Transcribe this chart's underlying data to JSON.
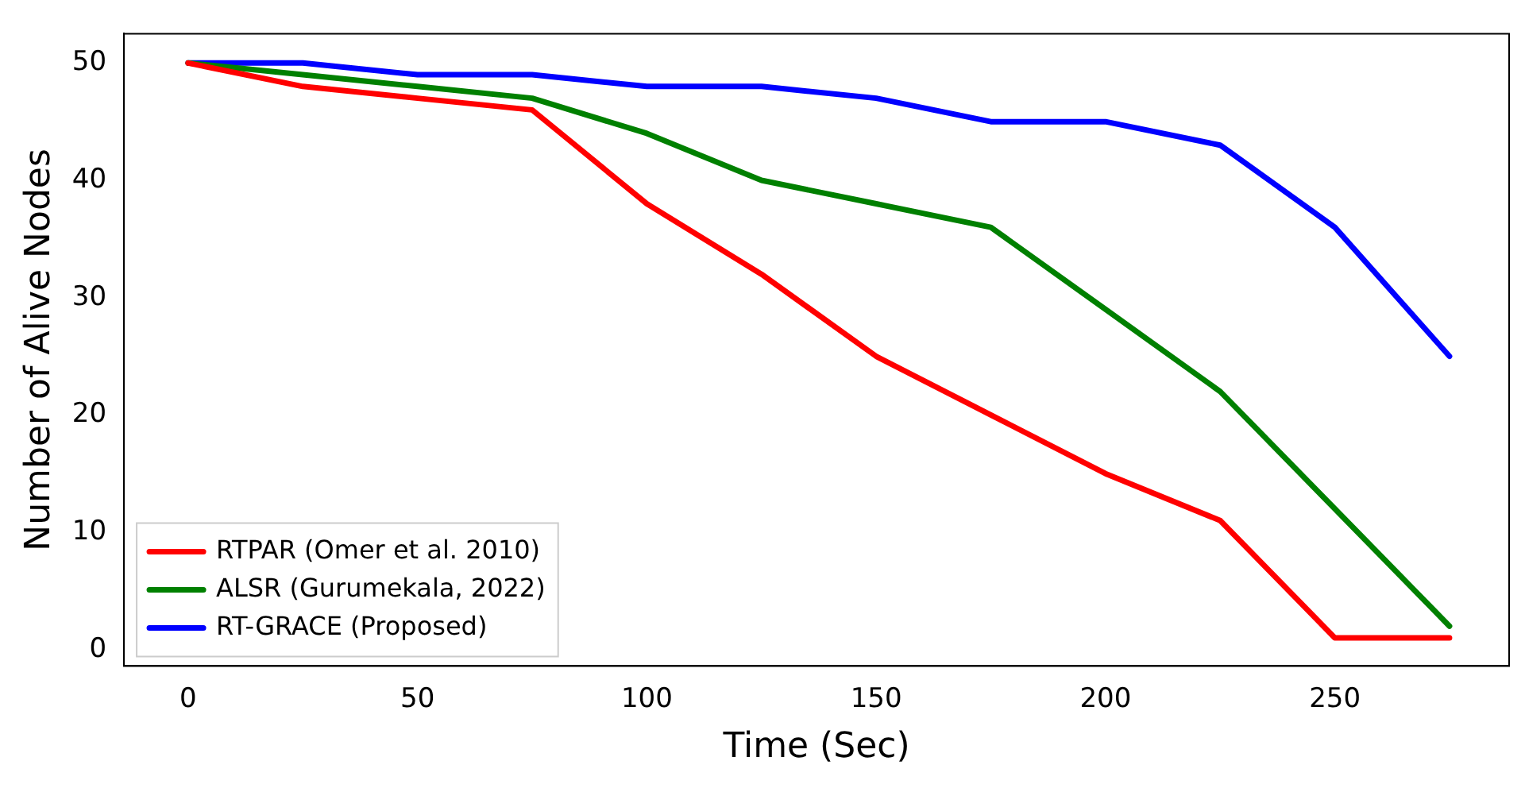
{
  "chart_data": {
    "type": "line",
    "xlabel": "Time (Sec)",
    "ylabel": "Number of Alive Nodes",
    "x": [
      0,
      25,
      50,
      75,
      100,
      125,
      150,
      175,
      200,
      225,
      250,
      275
    ],
    "series": [
      {
        "name": "RTPAR (Omer et al. 2010)",
        "color": "#ff0000",
        "values": [
          50,
          48,
          47,
          46,
          38,
          32,
          25,
          20,
          15,
          11,
          1,
          1
        ]
      },
      {
        "name": "ALSR (Gurumekala, 2022)",
        "color": "#008000",
        "values": [
          50,
          49,
          48,
          47,
          44,
          40,
          38,
          36,
          29,
          22,
          12,
          2
        ]
      },
      {
        "name": "RT-GRACE (Proposed)",
        "color": "#0000ff",
        "values": [
          50,
          50,
          49,
          49,
          48,
          48,
          47,
          45,
          45,
          43,
          36,
          25
        ]
      }
    ],
    "xlim": [
      -14,
      288
    ],
    "ylim": [
      -1.4,
      52.5
    ],
    "xticks": [
      0,
      50,
      100,
      150,
      200,
      250
    ],
    "yticks": [
      0,
      10,
      20,
      30,
      40,
      50
    ],
    "grid": false,
    "legend": "bottom left",
    "marker": "none",
    "line_style": "solid"
  }
}
